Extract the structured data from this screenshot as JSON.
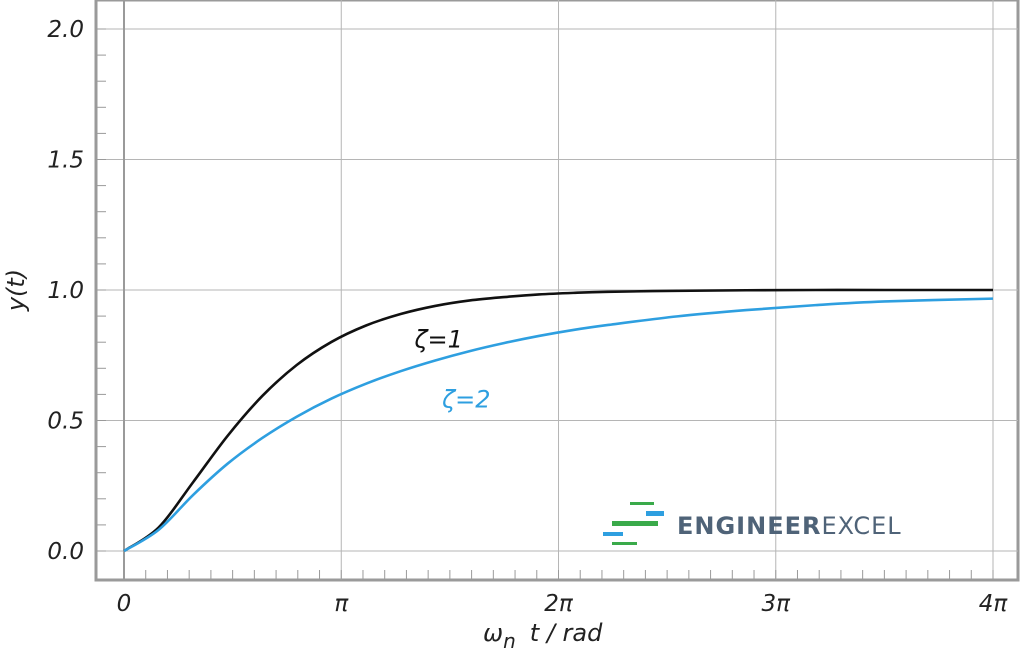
{
  "chart_data": {
    "type": "line",
    "title": "",
    "xlabel": "ω",
    "xlabel_sub": "n",
    "xlabel_suffix": "t / rad",
    "ylabel": "y(t)",
    "xlim": [
      0,
      12.566
    ],
    "ylim": [
      0,
      2.0
    ],
    "x_ticks": [
      {
        "value": 0,
        "label": "0"
      },
      {
        "value": 3.1416,
        "label": "π"
      },
      {
        "value": 6.2832,
        "label": "2π"
      },
      {
        "value": 9.4248,
        "label": "3π"
      },
      {
        "value": 12.566,
        "label": "4π"
      }
    ],
    "y_ticks": [
      {
        "value": 0.0,
        "label": "0.0"
      },
      {
        "value": 0.5,
        "label": "0.5"
      },
      {
        "value": 1.0,
        "label": "1.0"
      },
      {
        "value": 1.5,
        "label": "1.5"
      },
      {
        "value": 2.0,
        "label": "2.0"
      }
    ],
    "grid": true,
    "series": [
      {
        "name": "ζ=1",
        "color": "#111111",
        "x": [
          0,
          0.5,
          1.0,
          1.5,
          2.0,
          2.5,
          3.0,
          3.5,
          4.0,
          4.5,
          5.0,
          5.5,
          6.0,
          6.5,
          7.0,
          8.0,
          9.0,
          10.0,
          11.0,
          12.566
        ],
        "values": [
          0,
          0.09,
          0.264,
          0.442,
          0.594,
          0.713,
          0.801,
          0.864,
          0.908,
          0.939,
          0.96,
          0.973,
          0.983,
          0.989,
          0.993,
          0.997,
          0.999,
          1.0,
          1.0,
          1.0
        ]
      },
      {
        "name": "ζ=2",
        "color": "#2e9fe0",
        "x": [
          0,
          0.5,
          1.0,
          1.5,
          2.0,
          2.5,
          3.0,
          3.5,
          4.0,
          4.5,
          5.0,
          5.5,
          6.0,
          6.5,
          7.0,
          8.0,
          9.0,
          10.0,
          11.0,
          12.566
        ],
        "values": [
          0,
          0.081,
          0.215,
          0.335,
          0.433,
          0.515,
          0.584,
          0.641,
          0.689,
          0.73,
          0.766,
          0.797,
          0.824,
          0.847,
          0.866,
          0.899,
          0.923,
          0.942,
          0.956,
          0.967
        ]
      }
    ],
    "annotations": [
      {
        "text": "ζ=1",
        "x": 4.2,
        "y": 0.78,
        "color": "#111111"
      },
      {
        "text": "ζ=2",
        "x": 4.6,
        "y": 0.55,
        "color": "#2e9fe0"
      }
    ]
  },
  "logo": {
    "part1": "ENGINEER",
    "part2": "EXCEL",
    "color_primary": "#4f6378",
    "color_green": "#3aaa4a",
    "color_blue": "#2e9fe0"
  }
}
